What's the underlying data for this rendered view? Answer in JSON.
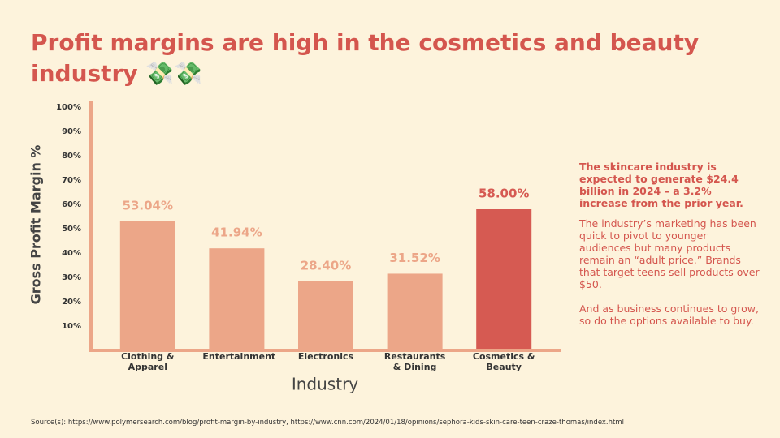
{
  "title": "Profit margins are high in the cosmetics and beauty industry 💸💸",
  "chart_data": {
    "type": "bar",
    "ylabel": "Gross Profit Margin %",
    "xlabel": "Industry",
    "categories": [
      "Clothing & Apparel",
      "Entertainment",
      "Electronics",
      "Restaurants & Dining",
      "Cosmetics & Beauty"
    ],
    "values": [
      53.04,
      41.94,
      28.4,
      31.52,
      58
    ],
    "value_labels": [
      "53.04%",
      "41.94%",
      "28.40%",
      "31.52%",
      "58.00%"
    ],
    "colors": [
      "#eca688",
      "#eca688",
      "#eca688",
      "#eca688",
      "#d65a52"
    ],
    "ylim": [
      0,
      100
    ],
    "yticks": [
      {
        "value": 10,
        "label": "10%"
      },
      {
        "value": 20,
        "label": "20%"
      },
      {
        "value": 30,
        "label": "30%"
      },
      {
        "value": 40,
        "label": "40%"
      },
      {
        "value": 50,
        "label": "50%"
      },
      {
        "value": 60,
        "label": "60%"
      },
      {
        "value": 70,
        "label": "70%"
      },
      {
        "value": 80,
        "label": "80%"
      },
      {
        "value": 90,
        "label": "90%"
      },
      {
        "value": 100,
        "label": "100%"
      }
    ],
    "grid": false
  },
  "notes": {
    "highlight": "The skincare industry is expected to generate $24.4 billion in 2024 – a 3.2% increase from the prior year.",
    "paragraphs": [
      "The industry’s marketing has been quick to pivot to younger audiences but many products remain an “adult price.” Brands that target teens sell products over $50.",
      "And as business continues to grow, so do the options available to buy."
    ]
  },
  "source": "Source(s): https://www.polymersearch.com/blog/profit-margin-by-industry, https://www.cnn.com/2024/01/18/opinions/sephora-kids-skin-care-teen-craze-thomas/index.html"
}
